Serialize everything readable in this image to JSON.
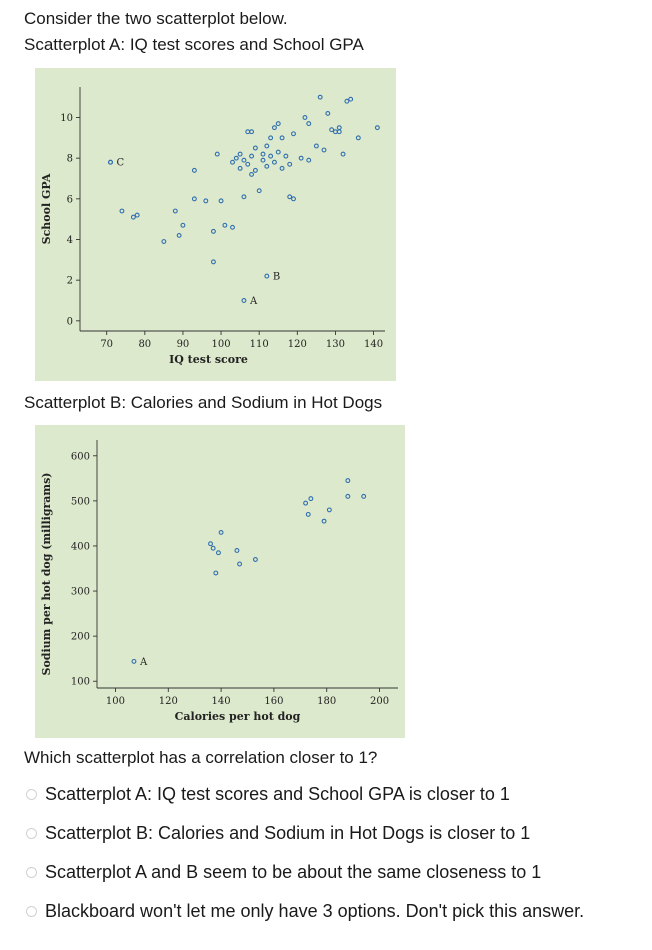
{
  "intro": "Consider the two scatterplot below.",
  "label_a": "Scatterplot A: IQ test scores and School GPA",
  "label_b": "Scatterplot B: Calories and Sodium in Hot Dogs",
  "question": "Which scatterplot has a correlation closer to 1?",
  "options": [
    "Scatterplot A: IQ test scores and School GPA is closer to 1",
    "Scatterplot B: Calories and Sodium in Hot Dogs is closer to 1",
    "Scatterplot A and B seem to be about the same closeness to 1",
    "Blackboard won't let me only have 3 options. Don't pick this answer."
  ],
  "colors": {
    "plot_bg": "#dde9cc",
    "point": "#2f6fb0",
    "radio": "#d2d2d2"
  },
  "chart_data": [
    {
      "type": "scatter",
      "title": "",
      "xlabel": "IQ test score",
      "ylabel": "School GPA",
      "xlim": [
        63,
        143
      ],
      "ylim": [
        -0.5,
        11.5
      ],
      "xticks": [
        70,
        80,
        90,
        100,
        110,
        120,
        130,
        140
      ],
      "yticks": [
        0,
        2,
        4,
        6,
        8,
        10
      ],
      "points": [
        [
          71,
          7.8
        ],
        [
          74,
          5.4
        ],
        [
          77,
          5.1
        ],
        [
          78,
          5.2
        ],
        [
          85,
          3.9
        ],
        [
          88,
          5.4
        ],
        [
          89,
          4.2
        ],
        [
          90,
          4.7
        ],
        [
          93,
          7.4
        ],
        [
          93,
          6.0
        ],
        [
          96,
          5.9
        ],
        [
          98,
          4.4
        ],
        [
          98,
          2.9
        ],
        [
          99,
          8.2
        ],
        [
          100,
          5.9
        ],
        [
          101,
          4.7
        ],
        [
          103,
          4.6
        ],
        [
          103,
          7.8
        ],
        [
          104,
          8.0
        ],
        [
          105,
          8.2
        ],
        [
          105,
          7.5
        ],
        [
          106,
          7.9
        ],
        [
          106,
          6.1
        ],
        [
          107,
          9.3
        ],
        [
          107,
          7.7
        ],
        [
          108,
          9.3
        ],
        [
          108,
          8.1
        ],
        [
          108,
          7.2
        ],
        [
          109,
          8.5
        ],
        [
          109,
          7.4
        ],
        [
          110,
          6.4
        ],
        [
          111,
          7.9
        ],
        [
          111,
          8.2
        ],
        [
          112,
          8.6
        ],
        [
          112,
          7.6
        ],
        [
          113,
          9.0
        ],
        [
          113,
          8.1
        ],
        [
          114,
          9.5
        ],
        [
          114,
          7.8
        ],
        [
          115,
          9.7
        ],
        [
          115,
          8.3
        ],
        [
          116,
          9.0
        ],
        [
          116,
          7.5
        ],
        [
          117,
          8.1
        ],
        [
          118,
          7.7
        ],
        [
          118,
          6.1
        ],
        [
          119,
          9.2
        ],
        [
          119,
          6.0
        ],
        [
          121,
          8.0
        ],
        [
          122,
          10.0
        ],
        [
          123,
          9.7
        ],
        [
          123,
          7.9
        ],
        [
          125,
          8.6
        ],
        [
          126,
          11.0
        ],
        [
          127,
          8.4
        ],
        [
          128,
          10.2
        ],
        [
          129,
          9.4
        ],
        [
          130,
          9.3
        ],
        [
          131,
          9.3
        ],
        [
          131,
          9.5
        ],
        [
          132,
          8.2
        ],
        [
          133,
          10.8
        ],
        [
          134,
          10.9
        ],
        [
          136,
          9.0
        ],
        [
          141,
          9.5
        ]
      ],
      "labeled_points": [
        {
          "label": "C",
          "x": 71,
          "y": 7.8
        },
        {
          "label": "B",
          "x": 112,
          "y": 2.2
        },
        {
          "label": "A",
          "x": 106,
          "y": 1.0
        }
      ]
    },
    {
      "type": "scatter",
      "title": "",
      "xlabel": "Calories per hot dog",
      "ylabel": "Sodium per hot dog (milligrams)",
      "xlim": [
        93,
        207
      ],
      "ylim": [
        85,
        635
      ],
      "xticks": [
        100,
        120,
        140,
        160,
        180,
        200
      ],
      "yticks": [
        100,
        200,
        300,
        400,
        500,
        600
      ],
      "points": [
        [
          136,
          405
        ],
        [
          137,
          395
        ],
        [
          138,
          340
        ],
        [
          139,
          385
        ],
        [
          140,
          430
        ],
        [
          146,
          390
        ],
        [
          147,
          360
        ],
        [
          153,
          370
        ],
        [
          172,
          495
        ],
        [
          173,
          470
        ],
        [
          174,
          505
        ],
        [
          179,
          455
        ],
        [
          181,
          480
        ],
        [
          188,
          545
        ],
        [
          188,
          510
        ],
        [
          194,
          510
        ]
      ],
      "labeled_points": [
        {
          "label": "A",
          "x": 107,
          "y": 144
        }
      ]
    }
  ]
}
